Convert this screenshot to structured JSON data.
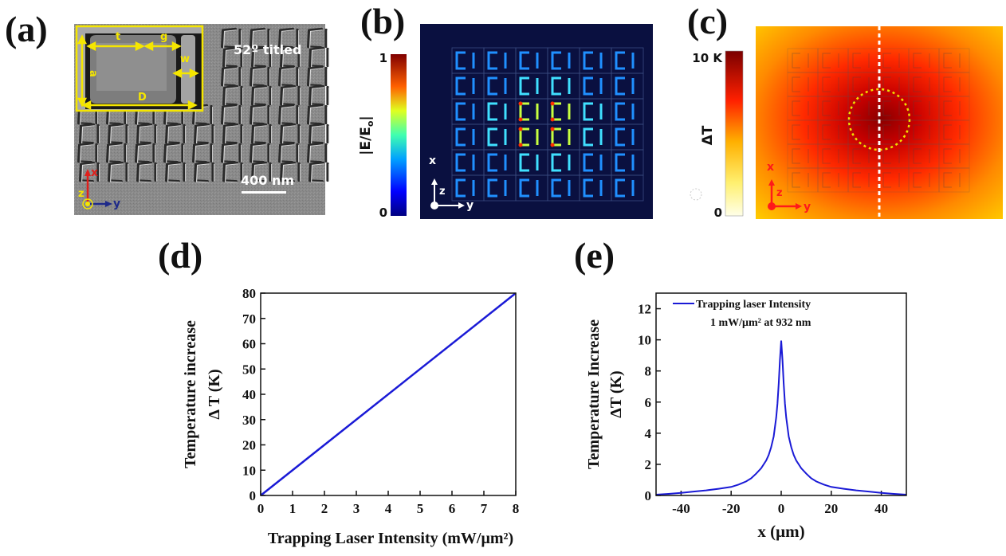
{
  "panels": {
    "a": "(a)",
    "b": "(b)",
    "c": "(c)",
    "d": "(d)",
    "e": "(e)"
  },
  "sem": {
    "tilt_label": "52º titled",
    "scale_label": "400 nm",
    "dims": {
      "t": "t",
      "g": "g",
      "a": "a",
      "w": "w",
      "D": "D"
    },
    "axes": {
      "x": "x",
      "y": "y",
      "z": "z"
    },
    "colors": {
      "dim": "#f5e600",
      "x_axis": "#e0201c",
      "y_axis": "#1e2a8a"
    }
  },
  "field_map": {
    "colorbar_label": "|E/E",
    "colorbar_label_sub": "o",
    "colorbar_label_end": "|",
    "colorbar_max": "1",
    "colorbar_min": "0",
    "axes": {
      "x": "x",
      "y": "y",
      "z": "z"
    }
  },
  "thermal_map": {
    "colorbar_label": "ΔT",
    "colorbar_max": "10 K",
    "colorbar_min": "0",
    "axes": {
      "x": "x",
      "y": "y",
      "z": "z"
    },
    "colors": {
      "axis": "#ff1a1a",
      "circle": "#f0e000"
    }
  },
  "chart_data": [
    {
      "type": "line",
      "series": [
        {
          "x": [
            0,
            8
          ],
          "y": [
            0,
            80
          ],
          "color": "#1a1ad6"
        }
      ],
      "xlabel": "Trapping Laser Intensity (mW/μm²)",
      "ylabel_line1": "Temperature increase",
      "ylabel_line2": "Δ T (K)",
      "xlim": [
        0,
        8
      ],
      "ylim": [
        0,
        80
      ],
      "xticks": [
        "0",
        "1",
        "2",
        "3",
        "4",
        "5",
        "6",
        "7",
        "8"
      ],
      "yticks": [
        "0",
        "10",
        "20",
        "30",
        "40",
        "50",
        "60",
        "70",
        "80"
      ],
      "grid": false
    },
    {
      "type": "line",
      "series": [
        {
          "name": "Trapping laser Intensity",
          "color": "#1a1ad6",
          "x": [
            -50,
            -45,
            -40,
            -35,
            -30,
            -25,
            -20,
            -17,
            -14,
            -12,
            -10,
            -8,
            -6,
            -5,
            -4,
            -3,
            -2,
            -1.5,
            -1,
            -0.5,
            0,
            0.5,
            1,
            1.5,
            2,
            3,
            4,
            5,
            6,
            8,
            10,
            12,
            14,
            17,
            20,
            25,
            30,
            35,
            40,
            45,
            50
          ],
          "y": [
            0.05,
            0.1,
            0.17,
            0.25,
            0.33,
            0.43,
            0.55,
            0.7,
            0.9,
            1.1,
            1.4,
            1.75,
            2.25,
            2.6,
            3.1,
            3.8,
            5.0,
            5.9,
            7.2,
            8.7,
            9.95,
            8.7,
            7.2,
            5.9,
            5.0,
            3.8,
            3.1,
            2.6,
            2.25,
            1.75,
            1.4,
            1.1,
            0.9,
            0.7,
            0.55,
            0.43,
            0.33,
            0.25,
            0.17,
            0.1,
            0.05
          ]
        }
      ],
      "legend_line2": "1 mW/μm² at 932 nm",
      "legend_position": "top",
      "xlabel": "x (μm)",
      "ylabel_line1": "Temperature Increase",
      "ylabel_line2": "ΔT (K)",
      "xlim": [
        -50,
        50
      ],
      "ylim": [
        0,
        13
      ],
      "xticks": [
        "-40",
        "-20",
        "0",
        "20",
        "40"
      ],
      "yticks": [
        "0",
        "2",
        "4",
        "6",
        "8",
        "10",
        "12"
      ],
      "grid": false
    }
  ]
}
